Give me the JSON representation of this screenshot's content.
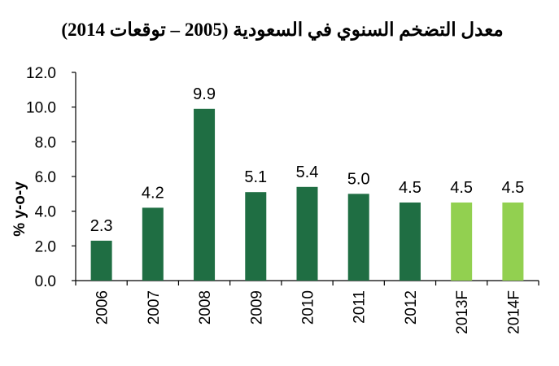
{
  "chart_data": {
    "type": "bar",
    "title": "معدل التضخم السنوي في السعودية  (2005 – توقعات 2014)",
    "ylabel": "% y-o-y",
    "xlabel": "",
    "categories": [
      "2006",
      "2007",
      "2008",
      "2009",
      "2010",
      "2011",
      "2012",
      "2013F",
      "2014F"
    ],
    "values": [
      2.3,
      4.2,
      9.9,
      5.1,
      5.4,
      5.0,
      4.5,
      4.5,
      4.5
    ],
    "value_labels": [
      "2.3",
      "4.2",
      "9.9",
      "5.1",
      "5.4",
      "5.0",
      "4.5",
      "4.5",
      "4.5"
    ],
    "ylim": [
      0,
      12
    ],
    "yticks": [
      "0.0",
      "2.0",
      "4.0",
      "6.0",
      "8.0",
      "10.0",
      "12.0"
    ],
    "grid": false,
    "legend": "none",
    "colors": {
      "actual": "#1f6e43",
      "forecast": "#92d050"
    },
    "forecast_categories": [
      "2013F",
      "2014F"
    ]
  }
}
